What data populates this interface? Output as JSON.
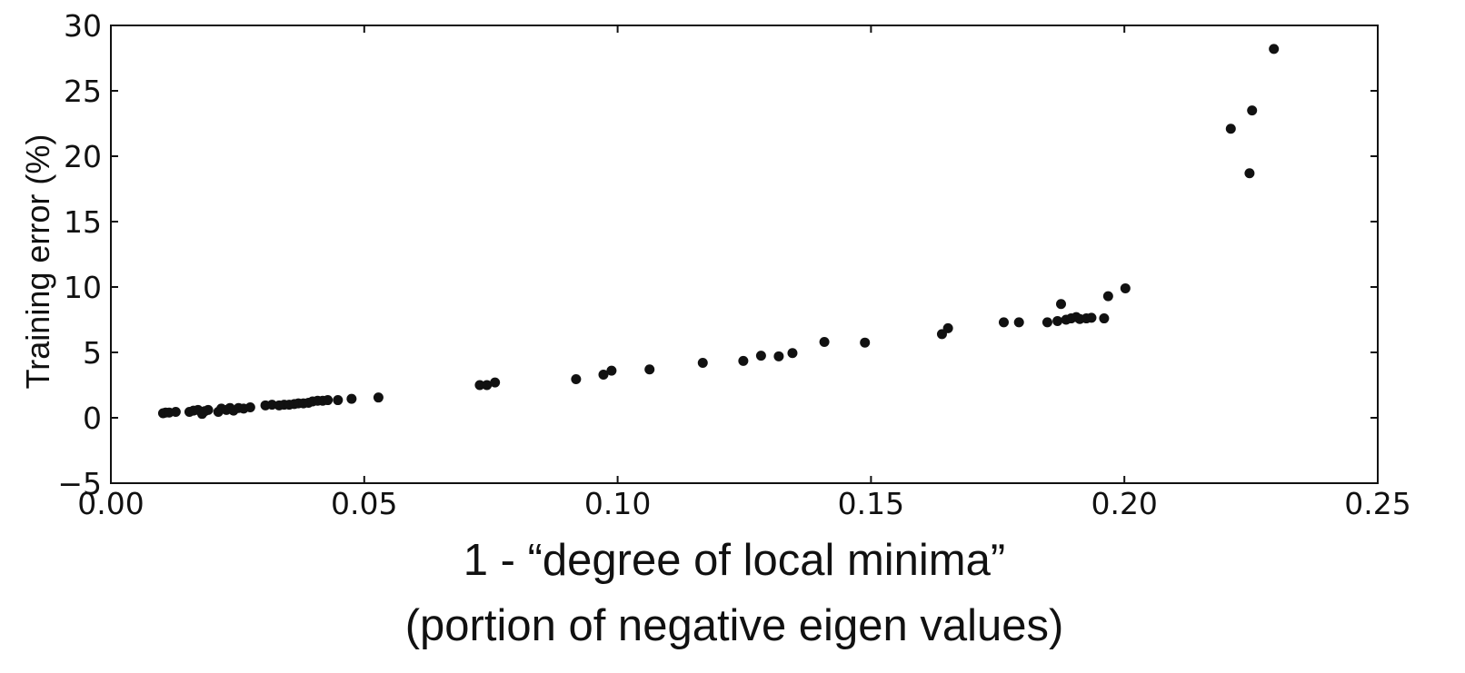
{
  "chart_data": {
    "type": "scatter",
    "title": "",
    "xlabel": "1 - “degree of local minima”",
    "xlabel_sub": "(portion of negative eigen values)",
    "ylabel": "Training error (%)",
    "xlim": [
      0.0,
      0.25
    ],
    "ylim": [
      -5,
      30
    ],
    "grid": false,
    "x_ticks": [
      0.0,
      0.05,
      0.1,
      0.15,
      0.2,
      0.25
    ],
    "x_tick_labels": [
      "0.00",
      "0.05",
      "0.10",
      "0.15",
      "0.20",
      "0.25"
    ],
    "y_ticks": [
      -5,
      0,
      5,
      10,
      15,
      20,
      25,
      30
    ],
    "y_tick_labels": [
      "−5",
      "0",
      "5",
      "10",
      "15",
      "20",
      "25",
      "30"
    ],
    "marker_color": "#111111",
    "points": [
      {
        "x": 0.0103,
        "y": 0.35
      },
      {
        "x": 0.0108,
        "y": 0.4
      },
      {
        "x": 0.0115,
        "y": 0.4
      },
      {
        "x": 0.0128,
        "y": 0.45
      },
      {
        "x": 0.0155,
        "y": 0.45
      },
      {
        "x": 0.0163,
        "y": 0.55
      },
      {
        "x": 0.0172,
        "y": 0.6
      },
      {
        "x": 0.018,
        "y": 0.3
      },
      {
        "x": 0.0185,
        "y": 0.5
      },
      {
        "x": 0.0192,
        "y": 0.6
      },
      {
        "x": 0.0212,
        "y": 0.45
      },
      {
        "x": 0.0218,
        "y": 0.7
      },
      {
        "x": 0.0228,
        "y": 0.6
      },
      {
        "x": 0.0235,
        "y": 0.75
      },
      {
        "x": 0.0242,
        "y": 0.55
      },
      {
        "x": 0.0252,
        "y": 0.75
      },
      {
        "x": 0.0262,
        "y": 0.7
      },
      {
        "x": 0.0275,
        "y": 0.8
      },
      {
        "x": 0.0305,
        "y": 0.95
      },
      {
        "x": 0.0318,
        "y": 1.0
      },
      {
        "x": 0.0332,
        "y": 0.95
      },
      {
        "x": 0.0342,
        "y": 1.0
      },
      {
        "x": 0.0352,
        "y": 1.0
      },
      {
        "x": 0.0362,
        "y": 1.05
      },
      {
        "x": 0.037,
        "y": 1.1
      },
      {
        "x": 0.038,
        "y": 1.1
      },
      {
        "x": 0.039,
        "y": 1.15
      },
      {
        "x": 0.0398,
        "y": 1.25
      },
      {
        "x": 0.0408,
        "y": 1.3
      },
      {
        "x": 0.0418,
        "y": 1.3
      },
      {
        "x": 0.0428,
        "y": 1.35
      },
      {
        "x": 0.0448,
        "y": 1.35
      },
      {
        "x": 0.0475,
        "y": 1.45
      },
      {
        "x": 0.0528,
        "y": 1.55
      },
      {
        "x": 0.0728,
        "y": 2.5
      },
      {
        "x": 0.0742,
        "y": 2.5
      },
      {
        "x": 0.0758,
        "y": 2.7
      },
      {
        "x": 0.0918,
        "y": 2.95
      },
      {
        "x": 0.0972,
        "y": 3.3
      },
      {
        "x": 0.0988,
        "y": 3.6
      },
      {
        "x": 0.1063,
        "y": 3.7
      },
      {
        "x": 0.1168,
        "y": 4.2
      },
      {
        "x": 0.1248,
        "y": 4.35
      },
      {
        "x": 0.1283,
        "y": 4.75
      },
      {
        "x": 0.1318,
        "y": 4.7
      },
      {
        "x": 0.1345,
        "y": 4.95
      },
      {
        "x": 0.1408,
        "y": 5.8
      },
      {
        "x": 0.1488,
        "y": 5.75
      },
      {
        "x": 0.164,
        "y": 6.4
      },
      {
        "x": 0.1652,
        "y": 6.85
      },
      {
        "x": 0.1762,
        "y": 7.3
      },
      {
        "x": 0.1792,
        "y": 7.3
      },
      {
        "x": 0.1848,
        "y": 7.3
      },
      {
        "x": 0.1868,
        "y": 7.4
      },
      {
        "x": 0.1875,
        "y": 8.7
      },
      {
        "x": 0.1885,
        "y": 7.5
      },
      {
        "x": 0.1895,
        "y": 7.6
      },
      {
        "x": 0.1905,
        "y": 7.7
      },
      {
        "x": 0.1912,
        "y": 7.55
      },
      {
        "x": 0.1925,
        "y": 7.6
      },
      {
        "x": 0.1935,
        "y": 7.65
      },
      {
        "x": 0.196,
        "y": 7.6
      },
      {
        "x": 0.1968,
        "y": 9.3
      },
      {
        "x": 0.2002,
        "y": 9.9
      },
      {
        "x": 0.221,
        "y": 22.1
      },
      {
        "x": 0.2247,
        "y": 18.7
      },
      {
        "x": 0.2252,
        "y": 23.5
      },
      {
        "x": 0.2295,
        "y": 28.2
      }
    ]
  }
}
